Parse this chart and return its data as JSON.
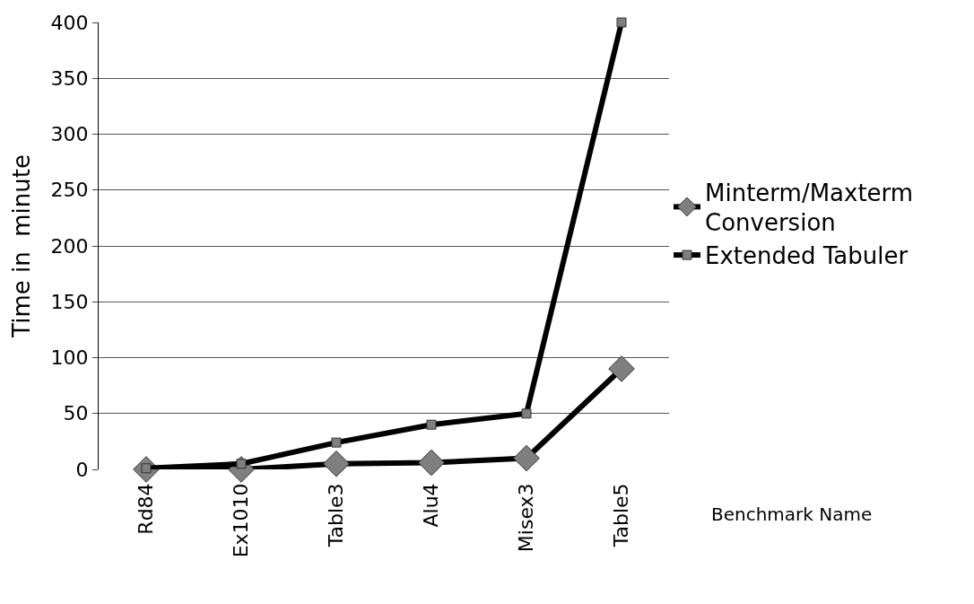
{
  "chart_data": {
    "type": "line",
    "xlabel": "Benchmark Name",
    "ylabel": "Time in  minute",
    "categories": [
      "Rd84",
      "Ex1010",
      "Table3",
      "Alu4",
      "Misex3",
      "Table5"
    ],
    "series": [
      {
        "name": "Minterm/Maxterm Conversion",
        "color": "#000000",
        "marker": "diamond",
        "values": [
          0,
          0,
          5,
          6,
          10,
          90
        ]
      },
      {
        "name": "Extended Tabuler",
        "color": "#000000",
        "marker": "square",
        "values": [
          1,
          5,
          24,
          40,
          50,
          400
        ]
      }
    ],
    "ylim": [
      0,
      400
    ],
    "yticks": [
      0,
      50,
      100,
      150,
      200,
      250,
      300,
      350,
      400
    ],
    "grid": "y",
    "legend": "right",
    "line_style": "solid"
  }
}
